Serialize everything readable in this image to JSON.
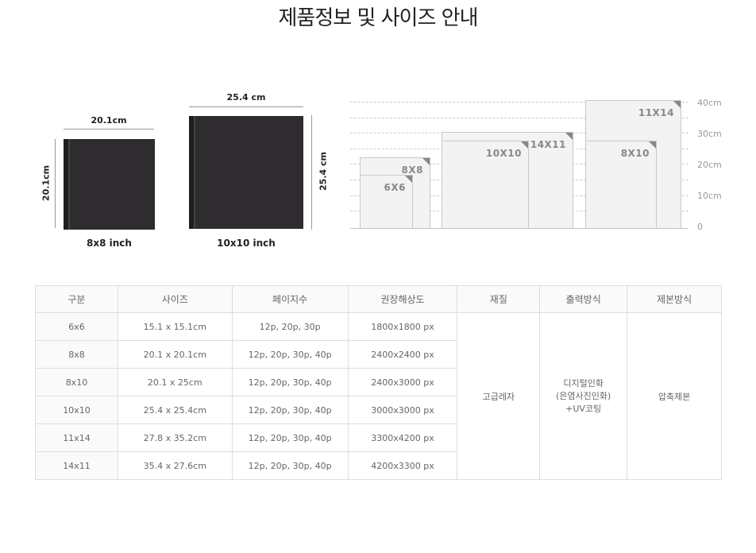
{
  "title": "제품정보 및 사이즈 안내",
  "albums": [
    {
      "caption": "8x8 inch",
      "width_label": "20.1cm",
      "height_label": "20.1cm"
    },
    {
      "caption": "10x10 inch",
      "width_label": "25.4 cm",
      "height_label": "25.4 cm"
    }
  ],
  "size_chart": {
    "y_ticks": [
      "40cm",
      "30cm",
      "20cm",
      "10cm",
      "0"
    ],
    "labels": {
      "s8x8": "8X8",
      "s6x6": "6X6",
      "s14x11": "14X11",
      "s10x10": "10X10",
      "s11x14": "11X14",
      "s8x10": "8X10"
    }
  },
  "table": {
    "headers": [
      "구분",
      "사이즈",
      "페이지수",
      "권장해상도",
      "재질",
      "출력방식",
      "제본방식"
    ],
    "rows": [
      [
        "6x6",
        "15.1 x 15.1cm",
        "12p, 20p, 30p",
        "1800x1800 px"
      ],
      [
        "8x8",
        "20.1 x 20.1cm",
        "12p, 20p, 30p, 40p",
        "2400x2400 px"
      ],
      [
        "8x10",
        "20.1 x 25cm",
        "12p, 20p, 30p, 40p",
        "2400x3000 px"
      ],
      [
        "10x10",
        "25.4 x 25.4cm",
        "12p, 20p, 30p, 40p",
        "3000x3000 px"
      ],
      [
        "11x14",
        "27.8 x 35.2cm",
        "12p, 20p, 30p, 40p",
        "3300x4200 px"
      ],
      [
        "14x11",
        "35.4 x 27.6cm",
        "12p, 20p, 30p, 40p",
        "4200x3300 px"
      ]
    ],
    "material": "고급레자",
    "print_method": [
      "디지털인화",
      "(은염사진인화)",
      "+UV코팅"
    ],
    "binding": "압축제본"
  }
}
